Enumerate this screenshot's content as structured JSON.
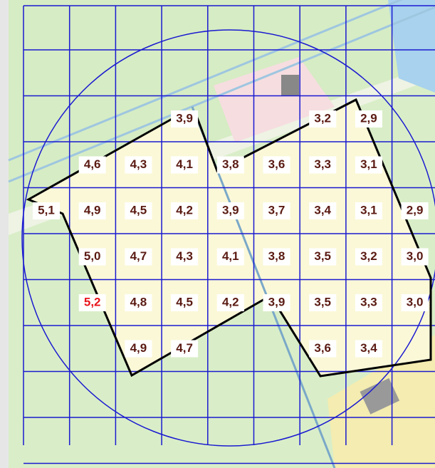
{
  "grid": {
    "rows": [
      [
        null,
        null,
        null,
        "3,9",
        null,
        null,
        "3,2",
        "2,9",
        null
      ],
      [
        null,
        "4,6",
        "4,3",
        "4,1",
        "3,8",
        "3,6",
        "3,3",
        "3,1",
        null
      ],
      [
        "5,1",
        "4,9",
        "4,5",
        "4,2",
        "3,9",
        "3,7",
        "3,4",
        "3,1",
        "2,9"
      ],
      [
        null,
        "5,0",
        "4,7",
        "4,3",
        "4,1",
        "3,8",
        "3,5",
        "3,2",
        "3,0"
      ],
      [
        null,
        {
          "label": "5,2",
          "color": "#e8141c"
        },
        "4,8",
        "4,5",
        "4,2",
        "3,9",
        "3,5",
        "3,3",
        "3,0"
      ],
      [
        null,
        null,
        "4,9",
        "4,7",
        null,
        null,
        "3,6",
        "3,4",
        null
      ]
    ]
  }
}
